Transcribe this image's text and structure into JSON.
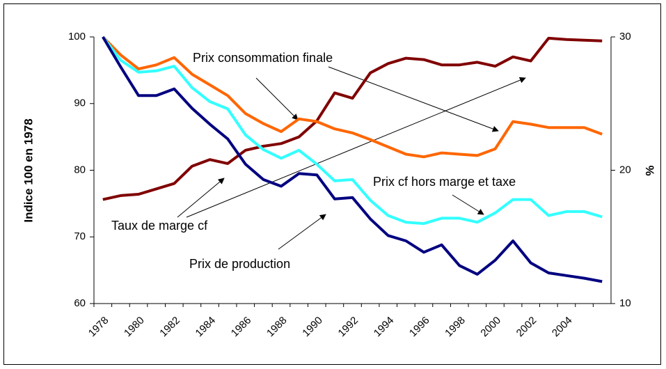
{
  "chart_data": {
    "type": "line",
    "ylabel": "Indice 100 en 1978",
    "y2label": "%",
    "categories": [
      "1978",
      null,
      "1980",
      null,
      "1982",
      null,
      "1984",
      null,
      "1986",
      null,
      "1988",
      null,
      "1990",
      null,
      "1992",
      null,
      "1994",
      null,
      "1996",
      null,
      "1998",
      null,
      "2000",
      null,
      "2002",
      null,
      "2004",
      null,
      null
    ],
    "series": [
      {
        "name": "Taux de marge cf",
        "color": "#800000",
        "axis": "y2",
        "values": [
          17.8,
          18.1,
          18.2,
          18.6,
          19.0,
          20.3,
          20.8,
          20.5,
          21.5,
          21.8,
          22.0,
          22.5,
          23.7,
          25.8,
          25.4,
          27.3,
          28.0,
          28.4,
          28.3,
          27.9,
          27.9,
          28.1,
          27.8,
          28.5,
          28.2,
          29.9,
          29.8,
          29.75,
          29.7
        ]
      },
      {
        "name": "Prix consommation finale",
        "color": "#ff6600",
        "values": [
          100,
          97.3,
          95.2,
          95.8,
          96.9,
          94.4,
          92.8,
          91.2,
          88.5,
          87.0,
          85.8,
          87.7,
          87.3,
          86.2,
          85.6,
          84.6,
          83.5,
          82.4,
          82.0,
          82.6,
          82.4,
          82.2,
          83.2,
          87.3,
          86.9,
          86.4,
          86.4,
          86.4,
          85.4
        ]
      },
      {
        "name": "Prix cf hors marge et taxe",
        "color": "#33ffff",
        "values": [
          100,
          96.5,
          94.7,
          94.9,
          95.6,
          92.4,
          90.3,
          89.2,
          85.3,
          83.1,
          81.8,
          83.0,
          80.9,
          78.4,
          78.6,
          75.5,
          73.2,
          72.2,
          72.0,
          72.8,
          72.8,
          72.2,
          73.6,
          75.6,
          75.6,
          73.2,
          73.8,
          73.8,
          73.0
        ]
      },
      {
        "name": "Prix de production",
        "color": "#000080",
        "values": [
          100,
          95.5,
          91.2,
          91.2,
          92.2,
          89.3,
          86.9,
          84.7,
          80.9,
          78.6,
          77.6,
          79.5,
          79.3,
          75.7,
          75.9,
          72.7,
          70.2,
          69.4,
          67.7,
          68.8,
          65.7,
          64.4,
          66.5,
          69.4,
          66.1,
          64.6,
          64.2,
          63.8,
          63.3
        ]
      }
    ],
    "ylim": [
      60,
      100
    ],
    "yticks": [
      60,
      70,
      80,
      90,
      100
    ],
    "y2lim": [
      10,
      30
    ],
    "y2ticks": [
      10,
      20,
      30
    ],
    "grid": false
  }
}
